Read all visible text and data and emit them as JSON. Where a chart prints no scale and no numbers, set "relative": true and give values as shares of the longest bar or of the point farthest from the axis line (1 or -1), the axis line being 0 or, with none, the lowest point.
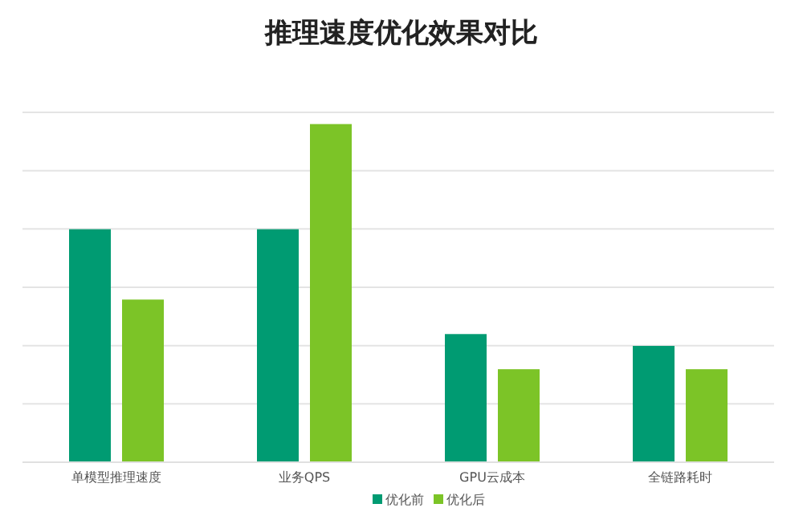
{
  "chart_data": {
    "type": "bar",
    "title": "推理速度优化效果对比",
    "relative": true,
    "grid": "y",
    "legend": "bottom",
    "categories": [
      "单模型推理速度",
      "业务QPS",
      "GPU云成本",
      "全链路耗时"
    ],
    "series": [
      {
        "name": "优化前",
        "color": "#009b72",
        "values": [
          0.689,
          0.689,
          0.379,
          0.344
        ]
      },
      {
        "name": "优化后",
        "color": "#7cc427",
        "values": [
          0.481,
          1,
          0.275,
          0.275
        ]
      }
    ]
  }
}
